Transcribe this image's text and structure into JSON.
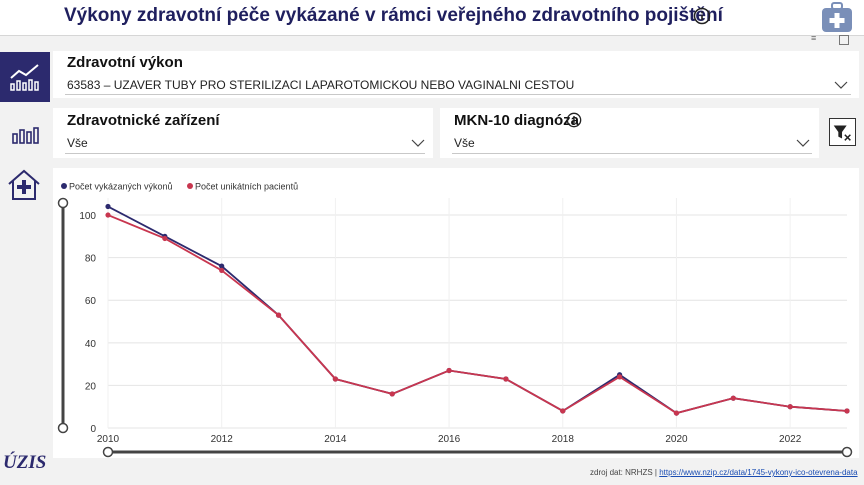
{
  "header": {
    "title": "Výkony zdravotní péče vykázané v rámci veřejného zdravotního pojištění"
  },
  "sidebar": {
    "logo_text": "ÚZIS"
  },
  "filters": {
    "procedure": {
      "label": "Zdravotní výkon",
      "value": "63583 – UZAVER TUBY PRO STERILIZACI LAPAROTOMICKOU NEBO VAGINALNI CESTOU"
    },
    "facility": {
      "label": "Zdravotnické zařízení",
      "value": "Vše"
    },
    "diagnosis": {
      "label": "MKN-10 diagnóza",
      "value": "Vše"
    }
  },
  "footer": {
    "source_prefix": "zdroj dat: NRHZS |",
    "source_link": "https://www.nzip.cz/data/1745-vykony-ico-otevrena-data"
  },
  "chart_data": {
    "type": "line",
    "x": [
      2010,
      2011,
      2012,
      2013,
      2014,
      2015,
      2016,
      2017,
      2018,
      2019,
      2020,
      2021,
      2022,
      2023
    ],
    "series": [
      {
        "name": "Počet vykázaných výkonů",
        "color": "#2c2a6e",
        "values": [
          104,
          90,
          76,
          53,
          23,
          16,
          27,
          23,
          8,
          25,
          7,
          14,
          10,
          8
        ]
      },
      {
        "name": "Počet unikátních pacientů",
        "color": "#c8364f",
        "values": [
          100,
          89,
          74,
          53,
          23,
          16,
          27,
          23,
          8,
          24,
          7,
          14,
          10,
          8
        ]
      }
    ],
    "x_ticks": [
      2010,
      2012,
      2014,
      2016,
      2018,
      2020,
      2022
    ],
    "y_ticks": [
      0,
      20,
      40,
      60,
      80,
      100
    ],
    "xlim": [
      2010,
      2023
    ],
    "ylim": [
      0,
      108
    ],
    "grid": true,
    "legend": "top-left"
  }
}
